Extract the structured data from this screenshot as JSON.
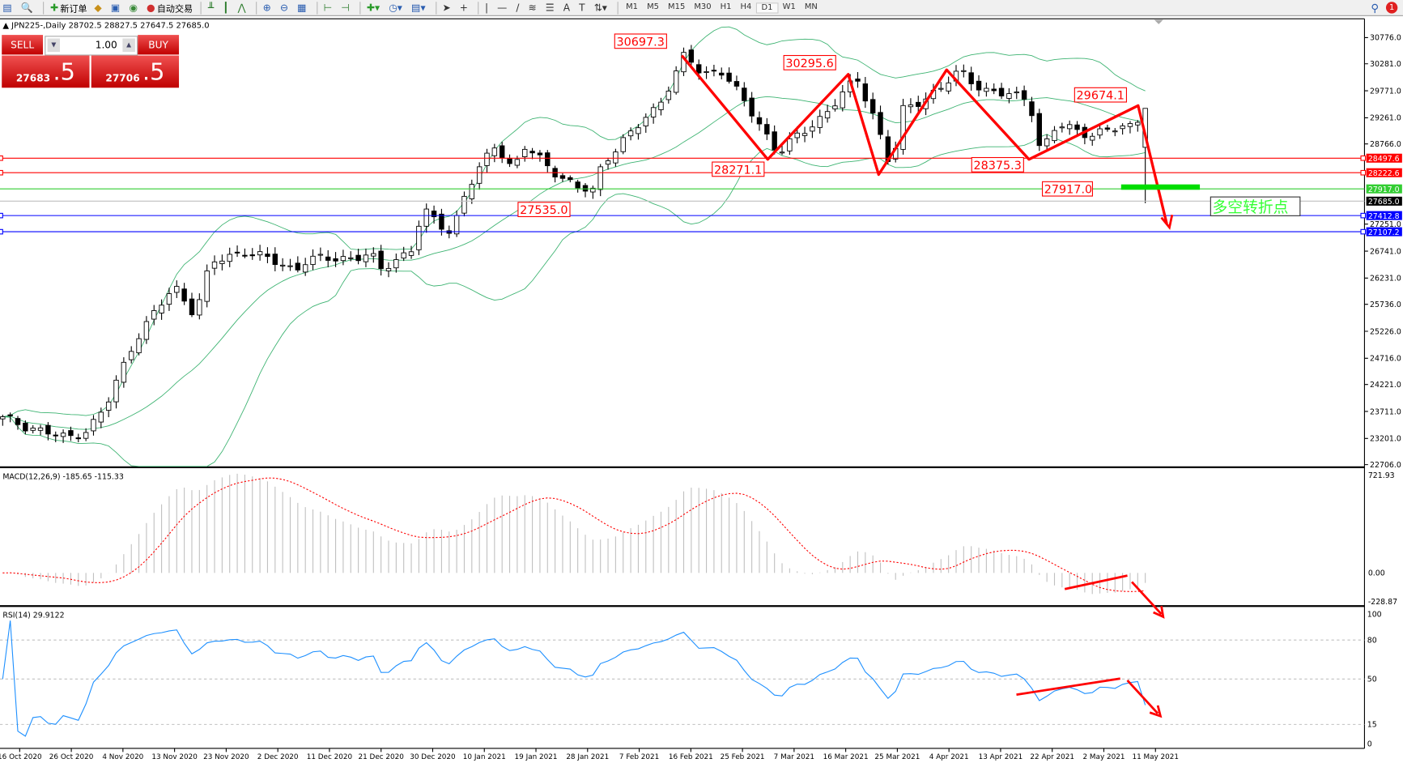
{
  "toolbar": {
    "new_order_label": "新订单",
    "auto_trading_label": "自动交易",
    "timeframes": [
      "M1",
      "M5",
      "M15",
      "M30",
      "H1",
      "H4",
      "D1",
      "W1",
      "MN"
    ],
    "active_timeframe": "D1",
    "notification_count": "1",
    "icons": [
      "new-chart-icon",
      "profiles-icon",
      "new-order-icon",
      "metaeditor-icon",
      "navigator-icon",
      "signals-icon",
      "auto-trading-icon",
      "bar-chart-icon",
      "candlestick-icon",
      "line-chart-icon",
      "zoom-in-icon",
      "zoom-out-icon",
      "tile-windows-icon",
      "autoscroll-icon",
      "chart-shift-icon",
      "indicators-icon",
      "periods-icon",
      "templates-icon",
      "cursor-icon",
      "crosshair-icon",
      "vertical-line-icon",
      "horizontal-line-icon",
      "trendline-icon",
      "fibonacci-icon",
      "fibo-fan-icon",
      "text-icon",
      "text-label-icon",
      "arrows-icon",
      "search-icon",
      "chat-icon"
    ]
  },
  "symbol_header": "JPN225-,Daily  28702.5 28827.5 27647.5 27685.0",
  "trade_panel": {
    "sell_label": "SELL",
    "buy_label": "BUY",
    "lot": "1.00",
    "sell_price_main": "27683",
    "sell_price_big": ".5",
    "buy_price_main": "27706",
    "buy_price_big": ".5"
  },
  "price_axis": [
    "30776.0",
    "30281.0",
    "29771.0",
    "29261.0",
    "28766.0",
    "26741.0",
    "26231.0",
    "25736.0",
    "25226.0",
    "24716.0",
    "24221.0",
    "23711.0",
    "23201.0",
    "22706.0",
    "27251.0"
  ],
  "price_tags": [
    {
      "value": 28497.6,
      "text": "28497.6",
      "color": "#ff0000",
      "kind": "line"
    },
    {
      "value": 28222.6,
      "text": "28222.6",
      "color": "#ff0000",
      "kind": "line"
    },
    {
      "value": 27917.0,
      "text": "27917.0",
      "color": "#32cd32",
      "kind": "line"
    },
    {
      "value": 27685.0,
      "text": "27685.0",
      "color": "#000000",
      "kind": "bid"
    },
    {
      "value": 27412.8,
      "text": "27412.8",
      "color": "#0000ff",
      "kind": "line"
    },
    {
      "value": 27107.2,
      "text": "27107.2",
      "color": "#0000ff",
      "kind": "line"
    }
  ],
  "annotations": {
    "price_labels": [
      "30697.3",
      "30295.6",
      "28271.1",
      "27535.0",
      "28375.3",
      "27917.0",
      "29674.1"
    ],
    "turning_point_text": "多空转折点",
    "color": "#ff0000"
  },
  "macd": {
    "label": "MACD(12,26,9) -185.65 -115.33",
    "axis": [
      "721.93",
      "0.00",
      "-228.87"
    ]
  },
  "rsi": {
    "label": "RSI(14) 29.9122",
    "axis": [
      "100",
      "80",
      "50",
      "15",
      "0"
    ]
  },
  "date_axis": [
    "16 Oct 2020",
    "26 Oct 2020",
    "4 Nov 2020",
    "13 Nov 2020",
    "23 Nov 2020",
    "2 Dec 2020",
    "11 Dec 2020",
    "21 Dec 2020",
    "30 Dec 2020",
    "10 Jan 2021",
    "19 Jan 2021",
    "28 Jan 2021",
    "7 Feb 2021",
    "16 Feb 2021",
    "25 Feb 2021",
    "7 Mar 2021",
    "16 Mar 2021",
    "25 Mar 2021",
    "4 Apr 2021",
    "13 Apr 2021",
    "22 Apr 2021",
    "2 May 2021",
    "11 May 2021"
  ],
  "chart_data": {
    "type": "candlestick",
    "symbol": "JPN225-",
    "timeframe": "Daily",
    "ylim": [
      22706,
      30776
    ],
    "last": {
      "open": 28702.5,
      "high": 28827.5,
      "low": 27647.5,
      "close": 27685.0
    },
    "indicators": [
      "Bollinger Bands (green)",
      "MACD(12,26,9)",
      "RSI(14)"
    ],
    "colors": {
      "bands": "#3cb371",
      "macd_signal": "#ff0000",
      "macd_hist": "#c0c0c0",
      "rsi": "#1e90ff"
    },
    "close_path": [
      [
        "2020-10-13",
        23570
      ],
      [
        "2020-10-25",
        23200
      ],
      [
        "2020-10-29",
        23380
      ],
      [
        "2020-11-01",
        23790
      ],
      [
        "2020-11-06",
        25060
      ],
      [
        "2020-11-13",
        26070
      ],
      [
        "2020-11-17",
        25560
      ],
      [
        "2020-11-20",
        26500
      ],
      [
        "2020-11-26",
        26750
      ],
      [
        "2020-12-05",
        26400
      ],
      [
        "2020-12-07",
        26570
      ],
      [
        "2020-12-19",
        26650
      ],
      [
        "2020-12-21",
        26400
      ],
      [
        "2020-12-27",
        26830
      ],
      [
        "2020-12-28",
        27510
      ],
      [
        "2021-01-03",
        27100
      ],
      [
        "2021-01-06",
        27850
      ],
      [
        "2021-01-12",
        28780
      ],
      [
        "2021-01-15",
        28280
      ],
      [
        "2021-01-17",
        28700
      ],
      [
        "2021-01-26",
        27940
      ],
      [
        "2021-01-29",
        27860
      ],
      [
        "2021-01-31",
        28450
      ],
      [
        "2021-02-07",
        29120
      ],
      [
        "2021-02-10",
        29460
      ],
      [
        "2021-02-14",
        30220
      ],
      [
        "2021-02-15",
        30470
      ],
      [
        "2021-02-18",
        30050
      ],
      [
        "2021-02-21",
        30220
      ],
      [
        "2021-02-26",
        29460
      ],
      [
        "2021-03-04",
        28610
      ],
      [
        "2021-03-11",
        29200
      ],
      [
        "2021-03-18",
        29990
      ],
      [
        "2021-03-21",
        29280
      ],
      [
        "2021-03-24",
        28280
      ],
      [
        "2021-03-26",
        29380
      ],
      [
        "2021-04-02",
        29800
      ],
      [
        "2021-04-06",
        30130
      ],
      [
        "2021-04-10",
        29800
      ],
      [
        "2021-04-13",
        29710
      ],
      [
        "2021-04-18",
        29630
      ],
      [
        "2021-04-20",
        28610
      ],
      [
        "2021-04-23",
        29120
      ],
      [
        "2021-04-30",
        28950
      ],
      [
        "2021-05-07",
        29120
      ],
      [
        "2021-05-10",
        29550
      ],
      [
        "2021-05-12",
        29200
      ],
      [
        "2021-05-14",
        27685
      ]
    ]
  }
}
